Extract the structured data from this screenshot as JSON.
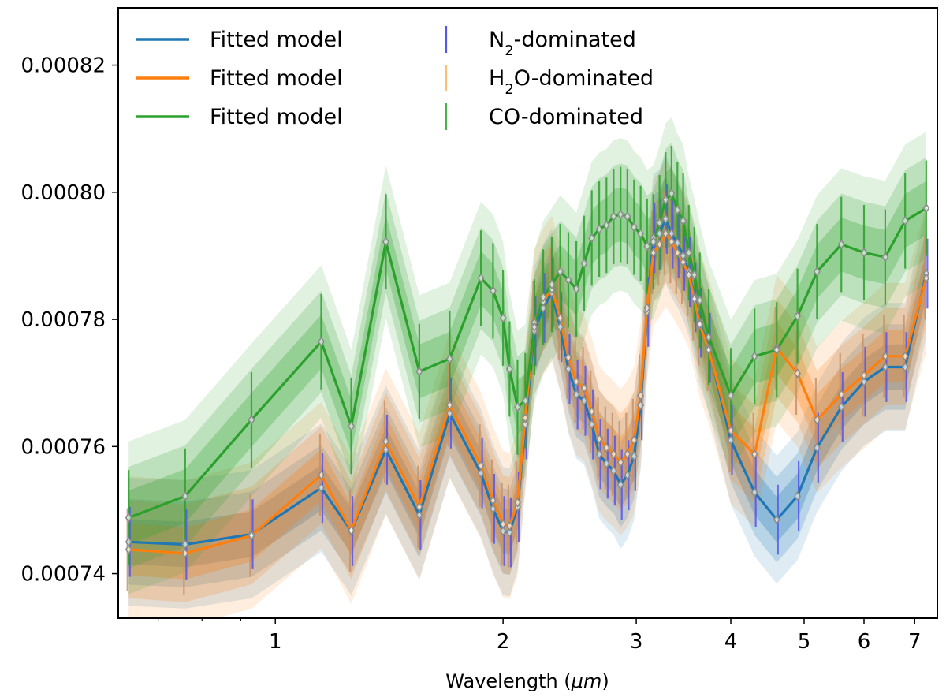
{
  "chart_data": {
    "type": "line",
    "title": "",
    "xlabel": "Wavelength (μm)",
    "xlabel_main": "Wavelength (",
    "xlabel_unit": "μm",
    "xlabel_close": ")",
    "ylabel": "",
    "x_scale": "log",
    "xlim": [
      0.62,
      7.5
    ],
    "ylim": [
      0.000733,
      0.000829
    ],
    "x_ticks": [
      {
        "value": 1,
        "label": "1"
      },
      {
        "value": 2,
        "label": "2"
      },
      {
        "value": 3,
        "label": "3"
      },
      {
        "value": 4,
        "label": "4"
      },
      {
        "value": 5,
        "label": "5"
      },
      {
        "value": 6,
        "label": "6"
      },
      {
        "value": 7,
        "label": "7"
      }
    ],
    "y_ticks": [
      {
        "value": 0.00074,
        "label": "0.00074"
      },
      {
        "value": 0.00076,
        "label": "0.00076"
      },
      {
        "value": 0.00078,
        "label": "0.00078"
      },
      {
        "value": 0.0008,
        "label": "0.00080"
      },
      {
        "value": 0.00082,
        "label": "0.00082"
      }
    ],
    "grid": false,
    "legend_placement": "top-left",
    "legend": [
      {
        "label": "Fitted model",
        "kind": "line",
        "color": "#1f77b4"
      },
      {
        "label": "Fitted model",
        "kind": "line",
        "color": "#ff7f0e"
      },
      {
        "label": "Fitted model",
        "kind": "line",
        "color": "#2ca02c"
      },
      {
        "label_main": "N",
        "label_sub": "2",
        "label_rest": "-dominated",
        "kind": "errorbar",
        "color": "#5555ee"
      },
      {
        "label_main": "H",
        "label_sub": "2",
        "label_rest": "O-dominated",
        "kind": "errorbar",
        "color": "#ffbf70"
      },
      {
        "label_main": "CO-dominated",
        "label_sub": "",
        "label_rest": "",
        "kind": "errorbar",
        "color": "#4caf50"
      }
    ],
    "x": [
      0.64,
      0.76,
      0.93,
      1.15,
      1.26,
      1.4,
      1.55,
      1.7,
      1.87,
      1.94,
      2.0,
      2.04,
      2.09,
      2.14,
      2.2,
      2.26,
      2.32,
      2.38,
      2.44,
      2.5,
      2.56,
      2.62,
      2.68,
      2.74,
      2.8,
      2.86,
      2.92,
      2.98,
      3.04,
      3.1,
      3.16,
      3.22,
      3.28,
      3.34,
      3.4,
      3.46,
      3.52,
      3.58,
      3.64,
      3.74,
      4.0,
      4.3,
      4.6,
      4.9,
      5.2,
      5.6,
      6.0,
      6.4,
      6.8,
      7.25
    ],
    "series": [
      {
        "name": "N2-dominated",
        "color": "#1f77b4",
        "errcolor": "#5555ee",
        "err": 5.5e-06,
        "values": [
          0.000745,
          0.0007446,
          0.0007462,
          0.0007535,
          0.0007467,
          0.0007595,
          0.0007492,
          0.0007652,
          0.0007558,
          0.0007502,
          0.0007467,
          0.0007465,
          0.0007505,
          0.0007635,
          0.0007782,
          0.0007818,
          0.0007842,
          0.0007788,
          0.0007722,
          0.0007682,
          0.0007672,
          0.0007635,
          0.0007588,
          0.0007573,
          0.0007562,
          0.000754,
          0.0007555,
          0.0007585,
          0.0007665,
          0.0007812,
          0.0007928,
          0.0007935,
          0.0007958,
          0.0007935,
          0.000792,
          0.00079,
          0.0007875,
          0.0007835,
          0.0007795,
          0.0007755,
          0.000761,
          0.0007528,
          0.0007485,
          0.0007522,
          0.0007598,
          0.0007662,
          0.0007702,
          0.0007725,
          0.0007725,
          0.0007872
        ]
      },
      {
        "name": "H2O-dominated",
        "color": "#ff7f0e",
        "errcolor": "#c8926a",
        "err": 6.5e-06,
        "values": [
          0.0007438,
          0.0007432,
          0.000746,
          0.0007555,
          0.0007468,
          0.0007608,
          0.0007505,
          0.0007665,
          0.000757,
          0.0007515,
          0.0007478,
          0.0007475,
          0.0007512,
          0.0007645,
          0.0007795,
          0.0007828,
          0.0007848,
          0.0007802,
          0.000774,
          0.0007702,
          0.0007692,
          0.0007655,
          0.0007612,
          0.0007598,
          0.0007588,
          0.0007575,
          0.0007588,
          0.000761,
          0.000768,
          0.0007818,
          0.0007905,
          0.0007918,
          0.0007935,
          0.0007922,
          0.0007905,
          0.000789,
          0.000787,
          0.0007832,
          0.0007792,
          0.0007752,
          0.0007625,
          0.0007588,
          0.0007755,
          0.0007715,
          0.0007642,
          0.0007682,
          0.0007712,
          0.0007742,
          0.0007742,
          0.0007865
        ]
      },
      {
        "name": "CO-dominated",
        "color": "#2ca02c",
        "errcolor": "#2ca02c",
        "err": 7.5e-06,
        "values": [
          0.0007488,
          0.0007522,
          0.0007642,
          0.0007765,
          0.0007632,
          0.0007922,
          0.0007718,
          0.0007738,
          0.0007865,
          0.0007845,
          0.0007802,
          0.0007722,
          0.0007662,
          0.0007672,
          0.0007788,
          0.0007835,
          0.0007855,
          0.0007875,
          0.0007862,
          0.0007848,
          0.0007888,
          0.0007928,
          0.0007942,
          0.0007948,
          0.0007962,
          0.0007965,
          0.0007962,
          0.0007945,
          0.0007935,
          0.0007915,
          0.0007922,
          0.0007952,
          0.0007988,
          0.0007998,
          0.0007972,
          0.0007955,
          0.0007905,
          0.000787,
          0.000783,
          0.0007772,
          0.000768,
          0.0007742,
          0.0007752,
          0.0007805,
          0.0007875,
          0.0007918,
          0.0007905,
          0.0007898,
          0.0007955,
          0.0007975
        ]
      }
    ]
  }
}
